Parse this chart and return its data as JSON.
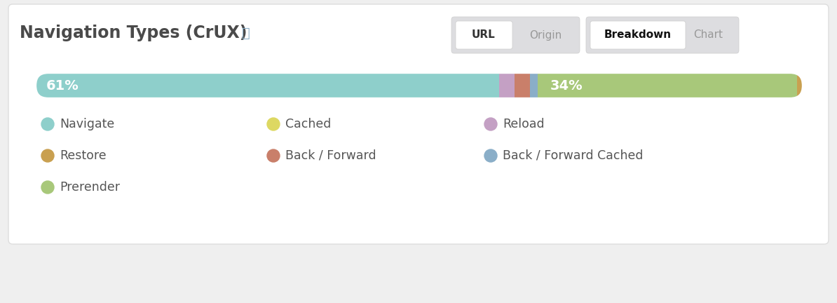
{
  "title": "Navigation Types (CrUX) ⓘ",
  "background_color": "#efefef",
  "card_color": "#ffffff",
  "segments": [
    {
      "label": "Navigate",
      "value": 61,
      "color": "#8ecfcb",
      "text": "61%",
      "show_text": true
    },
    {
      "label": "Reload",
      "value": 2,
      "color": "#c4a0c4",
      "text": "",
      "show_text": false
    },
    {
      "label": "Back / Forward",
      "value": 2,
      "color": "#c97f6a",
      "text": "",
      "show_text": false
    },
    {
      "label": "Back / Forward Cached",
      "value": 1,
      "color": "#8aaec8",
      "text": "",
      "show_text": false
    },
    {
      "label": "Prerender",
      "value": 34,
      "color": "#a8c87a",
      "text": "34%",
      "show_text": true
    },
    {
      "label": "Cached",
      "value": 0,
      "color": "#ddd862",
      "text": "",
      "show_text": false
    },
    {
      "label": "Restore",
      "value": 1,
      "color": "#c9a050",
      "text": "",
      "show_text": false
    }
  ],
  "legend_items": [
    {
      "label": "Navigate",
      "color": "#8ecfcb"
    },
    {
      "label": "Cached",
      "color": "#ddd862"
    },
    {
      "label": "Reload",
      "color": "#c4a0c4"
    },
    {
      "label": "Restore",
      "color": "#c9a050"
    },
    {
      "label": "Back / Forward",
      "color": "#c97f6a"
    },
    {
      "label": "Back / Forward Cached",
      "color": "#8aaec8"
    },
    {
      "label": "Prerender",
      "color": "#a8c87a"
    }
  ],
  "title_fontsize": 17,
  "legend_fontsize": 12.5,
  "url_label": "URL",
  "origin_label": "Origin",
  "breakdown_label": "Breakdown",
  "chart_label": "Chart"
}
